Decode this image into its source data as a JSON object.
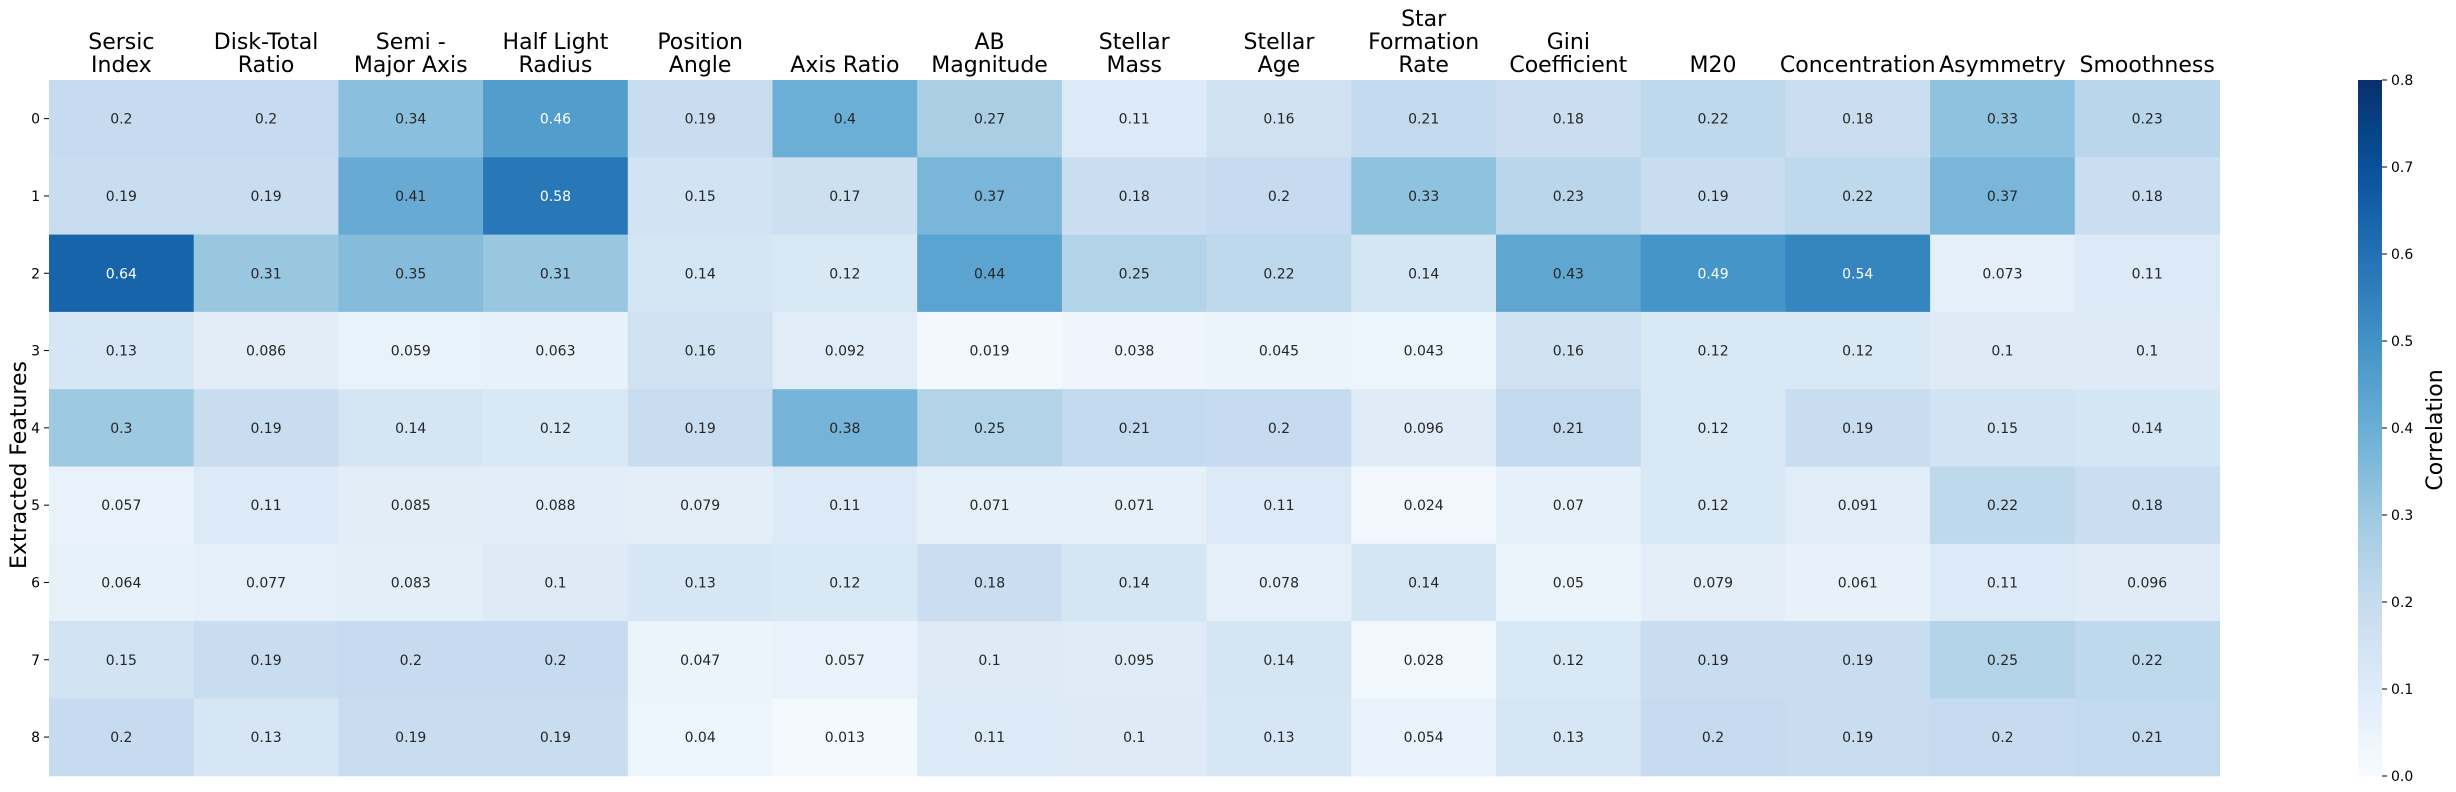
{
  "chart_data": {
    "type": "heatmap",
    "columns": [
      [
        "Sersic",
        "Index"
      ],
      [
        "Disk-Total",
        "Ratio"
      ],
      [
        "Semi -",
        "Major Axis"
      ],
      [
        "Half Light",
        "Radius"
      ],
      [
        "Position",
        "Angle"
      ],
      [
        "Axis Ratio"
      ],
      [
        "AB",
        "Magnitude"
      ],
      [
        "Stellar",
        "Mass"
      ],
      [
        "Stellar",
        "Age"
      ],
      [
        "Star",
        "Formation",
        "Rate"
      ],
      [
        "Gini",
        "Coefficient"
      ],
      [
        "M20"
      ],
      [
        "Concentration"
      ],
      [
        "Asymmetry"
      ],
      [
        "Smoothness"
      ]
    ],
    "rows": [
      "0",
      "1",
      "2",
      "3",
      "4",
      "5",
      "6",
      "7",
      "8"
    ],
    "ylabel": "Extracted Features",
    "values": [
      [
        0.2,
        0.2,
        0.34,
        0.46,
        0.19,
        0.4,
        0.27,
        0.11,
        0.16,
        0.21,
        0.18,
        0.22,
        0.18,
        0.33,
        0.23
      ],
      [
        0.19,
        0.19,
        0.41,
        0.58,
        0.15,
        0.17,
        0.37,
        0.18,
        0.2,
        0.33,
        0.23,
        0.19,
        0.22,
        0.37,
        0.18
      ],
      [
        0.64,
        0.31,
        0.35,
        0.31,
        0.14,
        0.12,
        0.44,
        0.25,
        0.22,
        0.14,
        0.43,
        0.49,
        0.54,
        0.073,
        0.11
      ],
      [
        0.13,
        0.086,
        0.059,
        0.063,
        0.16,
        0.092,
        0.019,
        0.038,
        0.045,
        0.043,
        0.16,
        0.12,
        0.12,
        0.1,
        0.1
      ],
      [
        0.3,
        0.19,
        0.14,
        0.12,
        0.19,
        0.38,
        0.25,
        0.21,
        0.2,
        0.096,
        0.21,
        0.12,
        0.19,
        0.15,
        0.14
      ],
      [
        0.057,
        0.11,
        0.085,
        0.088,
        0.079,
        0.11,
        0.071,
        0.071,
        0.11,
        0.024,
        0.07,
        0.12,
        0.091,
        0.22,
        0.18
      ],
      [
        0.064,
        0.077,
        0.083,
        0.1,
        0.13,
        0.12,
        0.18,
        0.14,
        0.078,
        0.14,
        0.05,
        0.079,
        0.061,
        0.11,
        0.096
      ],
      [
        0.15,
        0.19,
        0.2,
        0.2,
        0.047,
        0.057,
        0.1,
        0.095,
        0.14,
        0.028,
        0.12,
        0.19,
        0.19,
        0.25,
        0.22
      ],
      [
        0.2,
        0.13,
        0.19,
        0.19,
        0.04,
        0.013,
        0.11,
        0.1,
        0.13,
        0.054,
        0.13,
        0.2,
        0.19,
        0.2,
        0.21
      ]
    ],
    "colorbar": {
      "label": "Correlation",
      "range": [
        0.0,
        0.8
      ],
      "ticks": [
        "0.0",
        "0.1",
        "0.2",
        "0.3",
        "0.4",
        "0.5",
        "0.6",
        "0.7",
        "0.8"
      ],
      "colormap": "Blues"
    },
    "grid": false
  }
}
